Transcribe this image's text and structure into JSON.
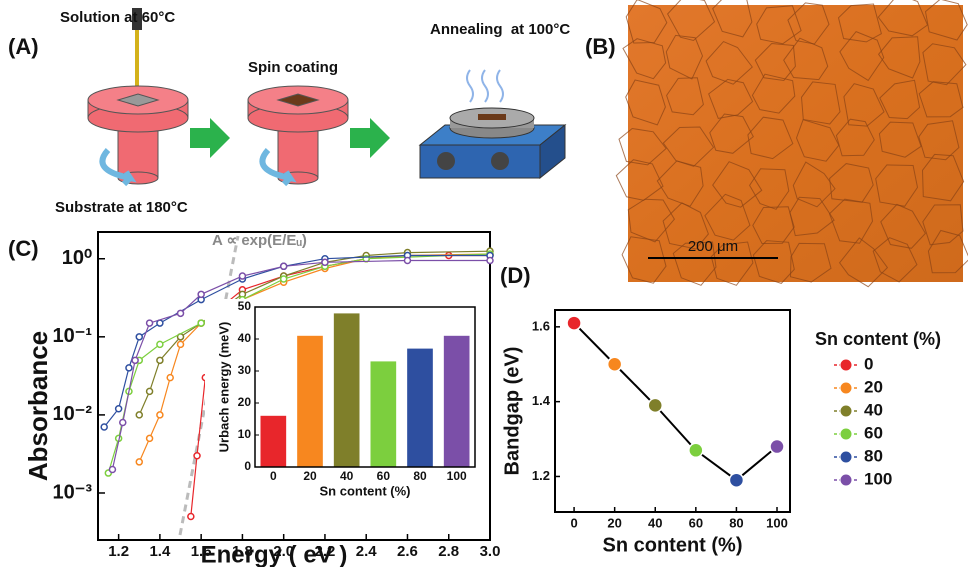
{
  "panel_labels": [
    "(A)",
    "(B)",
    "(C)",
    "(D)"
  ],
  "diagram": {
    "steps": [
      "Solution at 60°C",
      "Spin coating",
      "Annealing  at 100°C"
    ],
    "substrate": "Substrate at 180°C"
  },
  "micrograph": {
    "scale_bar": "200 μm"
  },
  "chart_data": [
    {
      "type": "scatter",
      "x_label": "Energy ( eV )",
      "y_label": "Absorbance",
      "annotation": "A ∝ exp(E/Eᵤ)",
      "log_y": true,
      "xlim": [
        1.1,
        3.0
      ],
      "ylim": [
        0.00025,
        2.2
      ],
      "xticks": [
        1.2,
        1.4,
        1.6,
        1.8,
        {
          "value": 2,
          "label": "2.0"
        },
        2.2,
        2.4,
        2.6,
        2.8,
        {
          "value": 3,
          "label": "3.0"
        }
      ],
      "yticks": [
        {
          "value": 0.001,
          "label": "10⁻³"
        },
        {
          "value": 0.01,
          "label": "10⁻²"
        },
        {
          "value": 0.1,
          "label": "10⁻¹"
        },
        {
          "value": 1,
          "label": "10⁰"
        }
      ],
      "series": [
        {
          "name": "0",
          "color": "#e8262b",
          "x": [
            1.55,
            1.58,
            1.62,
            1.66,
            1.8,
            2.0,
            2.2,
            2.4,
            2.6,
            2.8,
            3.0
          ],
          "values": [
            0.0005,
            0.003,
            0.03,
            0.2,
            0.4,
            0.6,
            0.8,
            1.0,
            1.1,
            1.1,
            1.1
          ]
        },
        {
          "name": "20",
          "color": "#f7871f",
          "x": [
            1.3,
            1.35,
            1.4,
            1.45,
            1.5,
            1.6,
            1.8,
            2.0,
            2.2,
            2.4,
            2.6,
            3.0
          ],
          "values": [
            0.0025,
            0.005,
            0.01,
            0.03,
            0.08,
            0.15,
            0.3,
            0.5,
            0.75,
            1.0,
            1.1,
            1.15
          ]
        },
        {
          "name": "40",
          "color": "#7f7f2a",
          "x": [
            1.3,
            1.35,
            1.4,
            1.5,
            1.6,
            1.8,
            2.0,
            2.2,
            2.4,
            2.6,
            3.0
          ],
          "values": [
            0.01,
            0.02,
            0.05,
            0.1,
            0.15,
            0.35,
            0.6,
            0.9,
            1.1,
            1.2,
            1.25
          ]
        },
        {
          "name": "60",
          "color": "#7ccf3e",
          "x": [
            1.15,
            1.2,
            1.25,
            1.3,
            1.4,
            1.6,
            1.8,
            2.0,
            2.2,
            2.4,
            3.0
          ],
          "values": [
            0.0018,
            0.005,
            0.02,
            0.05,
            0.08,
            0.15,
            0.3,
            0.55,
            0.8,
            1.0,
            1.15
          ]
        },
        {
          "name": "80",
          "color": "#2e4fa0",
          "x": [
            1.13,
            1.2,
            1.25,
            1.3,
            1.4,
            1.6,
            1.8,
            2.0,
            2.2,
            2.6,
            3.0
          ],
          "values": [
            0.007,
            0.012,
            0.04,
            0.1,
            0.15,
            0.3,
            0.55,
            0.8,
            1.0,
            1.1,
            1.1
          ]
        },
        {
          "name": "100",
          "color": "#7b4fa8",
          "x": [
            1.17,
            1.22,
            1.28,
            1.35,
            1.5,
            1.6,
            1.8,
            2.0,
            2.2,
            2.6,
            3.0
          ],
          "values": [
            0.002,
            0.008,
            0.05,
            0.15,
            0.2,
            0.35,
            0.6,
            0.8,
            0.9,
            0.95,
            0.95
          ]
        }
      ]
    },
    {
      "type": "bar",
      "x_label": "Sn content (%)",
      "y_label": "Urbach energy (meV)",
      "categories": [
        "0",
        "20",
        "40",
        "60",
        "80",
        "100"
      ],
      "values": [
        16,
        41,
        48,
        33,
        37,
        41
      ],
      "colors": [
        "#e8262b",
        "#f7871f",
        "#7f7f2a",
        "#7ccf3e",
        "#2e4fa0",
        "#7b4fa8"
      ],
      "ylim": [
        0,
        50
      ],
      "yticks": [
        0,
        10,
        20,
        30,
        40,
        50
      ]
    },
    {
      "type": "line",
      "x_label": "Sn content (%)",
      "y_label": "Bandgap (eV)",
      "legend_title": "Sn content (%)",
      "x": [
        0,
        20,
        40,
        60,
        80,
        100
      ],
      "values": [
        1.61,
        1.5,
        1.39,
        1.27,
        1.19,
        1.28
      ],
      "marker_colors": [
        "#e8262b",
        "#f7871f",
        "#7f7f2a",
        "#7ccf3e",
        "#2e4fa0",
        "#7b4fa8"
      ],
      "color": "#000000",
      "xlim": [
        -9.4,
        106.4
      ],
      "ylim": [
        1.105,
        1.645
      ],
      "xticks": [
        0,
        20,
        40,
        60,
        80,
        100
      ],
      "yticks": [
        1.2,
        1.4,
        1.6
      ]
    }
  ]
}
